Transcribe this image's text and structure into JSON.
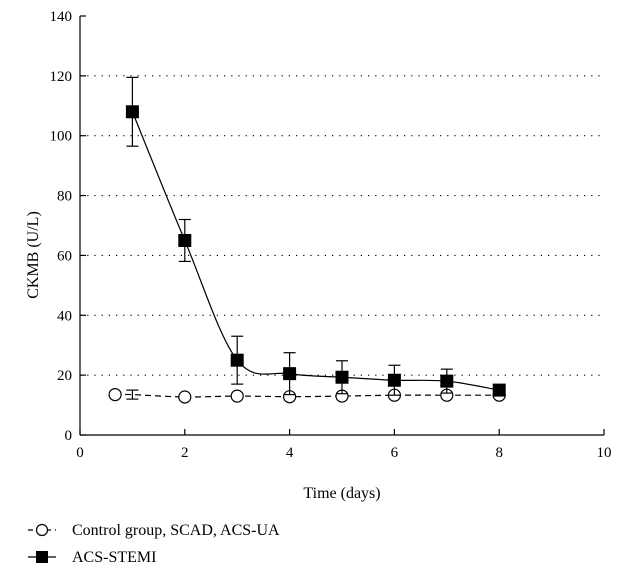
{
  "chart_data": {
    "type": "line",
    "xlabel": "Time (days)",
    "ylabel": "CKMB (U/L)",
    "xlim": [
      0,
      10
    ],
    "ylim": [
      0,
      140
    ],
    "x_ticks": [
      0,
      2,
      4,
      6,
      8,
      10
    ],
    "y_ticks": [
      0,
      20,
      40,
      60,
      80,
      100,
      120,
      140
    ],
    "grid": "horizontal-dotted",
    "legend_position": "bottom-left",
    "series": [
      {
        "name": "Control group, SCAD, ACS-UA",
        "marker": "open-circle",
        "line_style": "dashed",
        "color": "#000000",
        "x": [
          0.67,
          1,
          2,
          3,
          4,
          5,
          6,
          7,
          8
        ],
        "y": [
          13.5,
          13.5,
          12.7,
          13.0,
          12.8,
          13.0,
          13.3,
          13.3,
          13.3
        ],
        "error": [
          null,
          1.5,
          null,
          null,
          null,
          null,
          null,
          null,
          null
        ]
      },
      {
        "name": "ACS-STEMI",
        "marker": "filled-square",
        "line_style": "solid",
        "color": "#000000",
        "x": [
          1,
          2,
          3,
          4,
          5,
          6,
          7,
          8
        ],
        "y": [
          108,
          65,
          25,
          20.5,
          19.3,
          18.3,
          18.0,
          15.0
        ],
        "error": [
          11.5,
          7,
          8,
          7,
          5.5,
          5,
          4,
          null
        ]
      }
    ]
  }
}
